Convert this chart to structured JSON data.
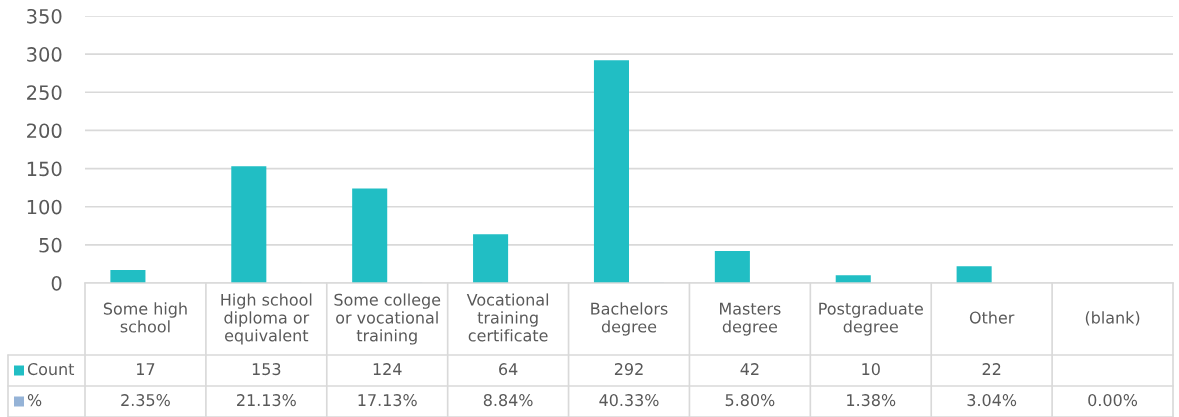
{
  "chart_data": {
    "type": "bar",
    "categories": [
      "Some high\nschool",
      "High school\ndiploma or\nequivalent",
      "Some college\nor vocational\ntraining",
      "Vocational\ntraining\ncertificate",
      "Bachelors\ndegree",
      "Masters\ndegree",
      "Postgraduate\ndegree",
      "Other",
      "(blank)"
    ],
    "series": [
      {
        "name": "Count",
        "color": "#21bec4",
        "values": [
          17,
          153,
          124,
          64,
          292,
          42,
          10,
          22,
          null
        ],
        "value_labels": [
          "17",
          "153",
          "124",
          "64",
          "292",
          "42",
          "10",
          "22",
          null
        ]
      },
      {
        "name": "%",
        "color": "#95b3d7",
        "values": [
          0.0235,
          0.2113,
          0.1713,
          0.0884,
          0.4033,
          0.058,
          0.0138,
          0.0304,
          0.0
        ],
        "value_labels": [
          "2.35%",
          "21.13%",
          "17.13%",
          "8.84%",
          "40.33%",
          "5.80%",
          "1.38%",
          "3.04%",
          "0.00%"
        ]
      }
    ],
    "ylim": [
      0,
      350
    ],
    "yticks": [
      0,
      50,
      100,
      150,
      200,
      250,
      300,
      350
    ],
    "grid": "y",
    "legend": "bottom"
  }
}
